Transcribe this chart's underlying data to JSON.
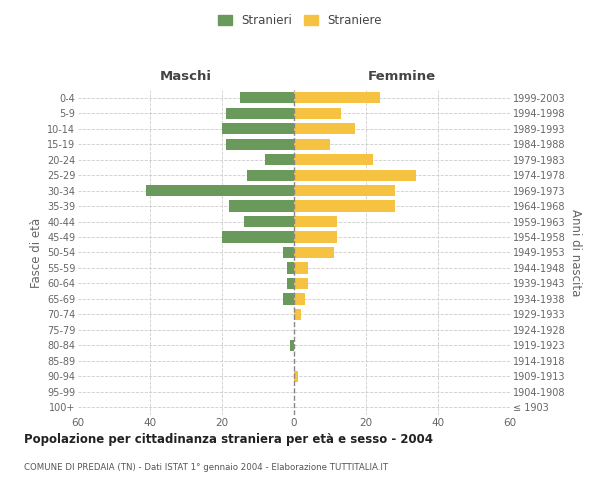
{
  "age_groups": [
    "100+",
    "95-99",
    "90-94",
    "85-89",
    "80-84",
    "75-79",
    "70-74",
    "65-69",
    "60-64",
    "55-59",
    "50-54",
    "45-49",
    "40-44",
    "35-39",
    "30-34",
    "25-29",
    "20-24",
    "15-19",
    "10-14",
    "5-9",
    "0-4"
  ],
  "birth_years": [
    "≤ 1903",
    "1904-1908",
    "1909-1913",
    "1914-1918",
    "1919-1923",
    "1924-1928",
    "1929-1933",
    "1934-1938",
    "1939-1943",
    "1944-1948",
    "1949-1953",
    "1954-1958",
    "1959-1963",
    "1964-1968",
    "1969-1973",
    "1974-1978",
    "1979-1983",
    "1984-1988",
    "1989-1993",
    "1994-1998",
    "1999-2003"
  ],
  "males": [
    0,
    0,
    0,
    0,
    1,
    0,
    0,
    3,
    2,
    2,
    3,
    20,
    14,
    18,
    41,
    13,
    8,
    19,
    20,
    19,
    15
  ],
  "females": [
    0,
    0,
    1,
    0,
    0,
    0,
    2,
    3,
    4,
    4,
    11,
    12,
    12,
    28,
    28,
    34,
    22,
    10,
    17,
    13,
    24
  ],
  "male_color": "#6a9a5b",
  "female_color": "#f5c242",
  "grid_color": "#cccccc",
  "dashed_line_color": "#888888",
  "title": "Popolazione per cittadinanza straniera per età e sesso - 2004",
  "subtitle": "COMUNE DI PREDAIA (TN) - Dati ISTAT 1° gennaio 2004 - Elaborazione TUTTITALIA.IT",
  "xlabel_left": "Maschi",
  "xlabel_right": "Femmine",
  "ylabel_left": "Fasce di età",
  "ylabel_right": "Anni di nascita",
  "legend_male": "Stranieri",
  "legend_female": "Straniere",
  "xlim": 60,
  "background_color": "#ffffff"
}
